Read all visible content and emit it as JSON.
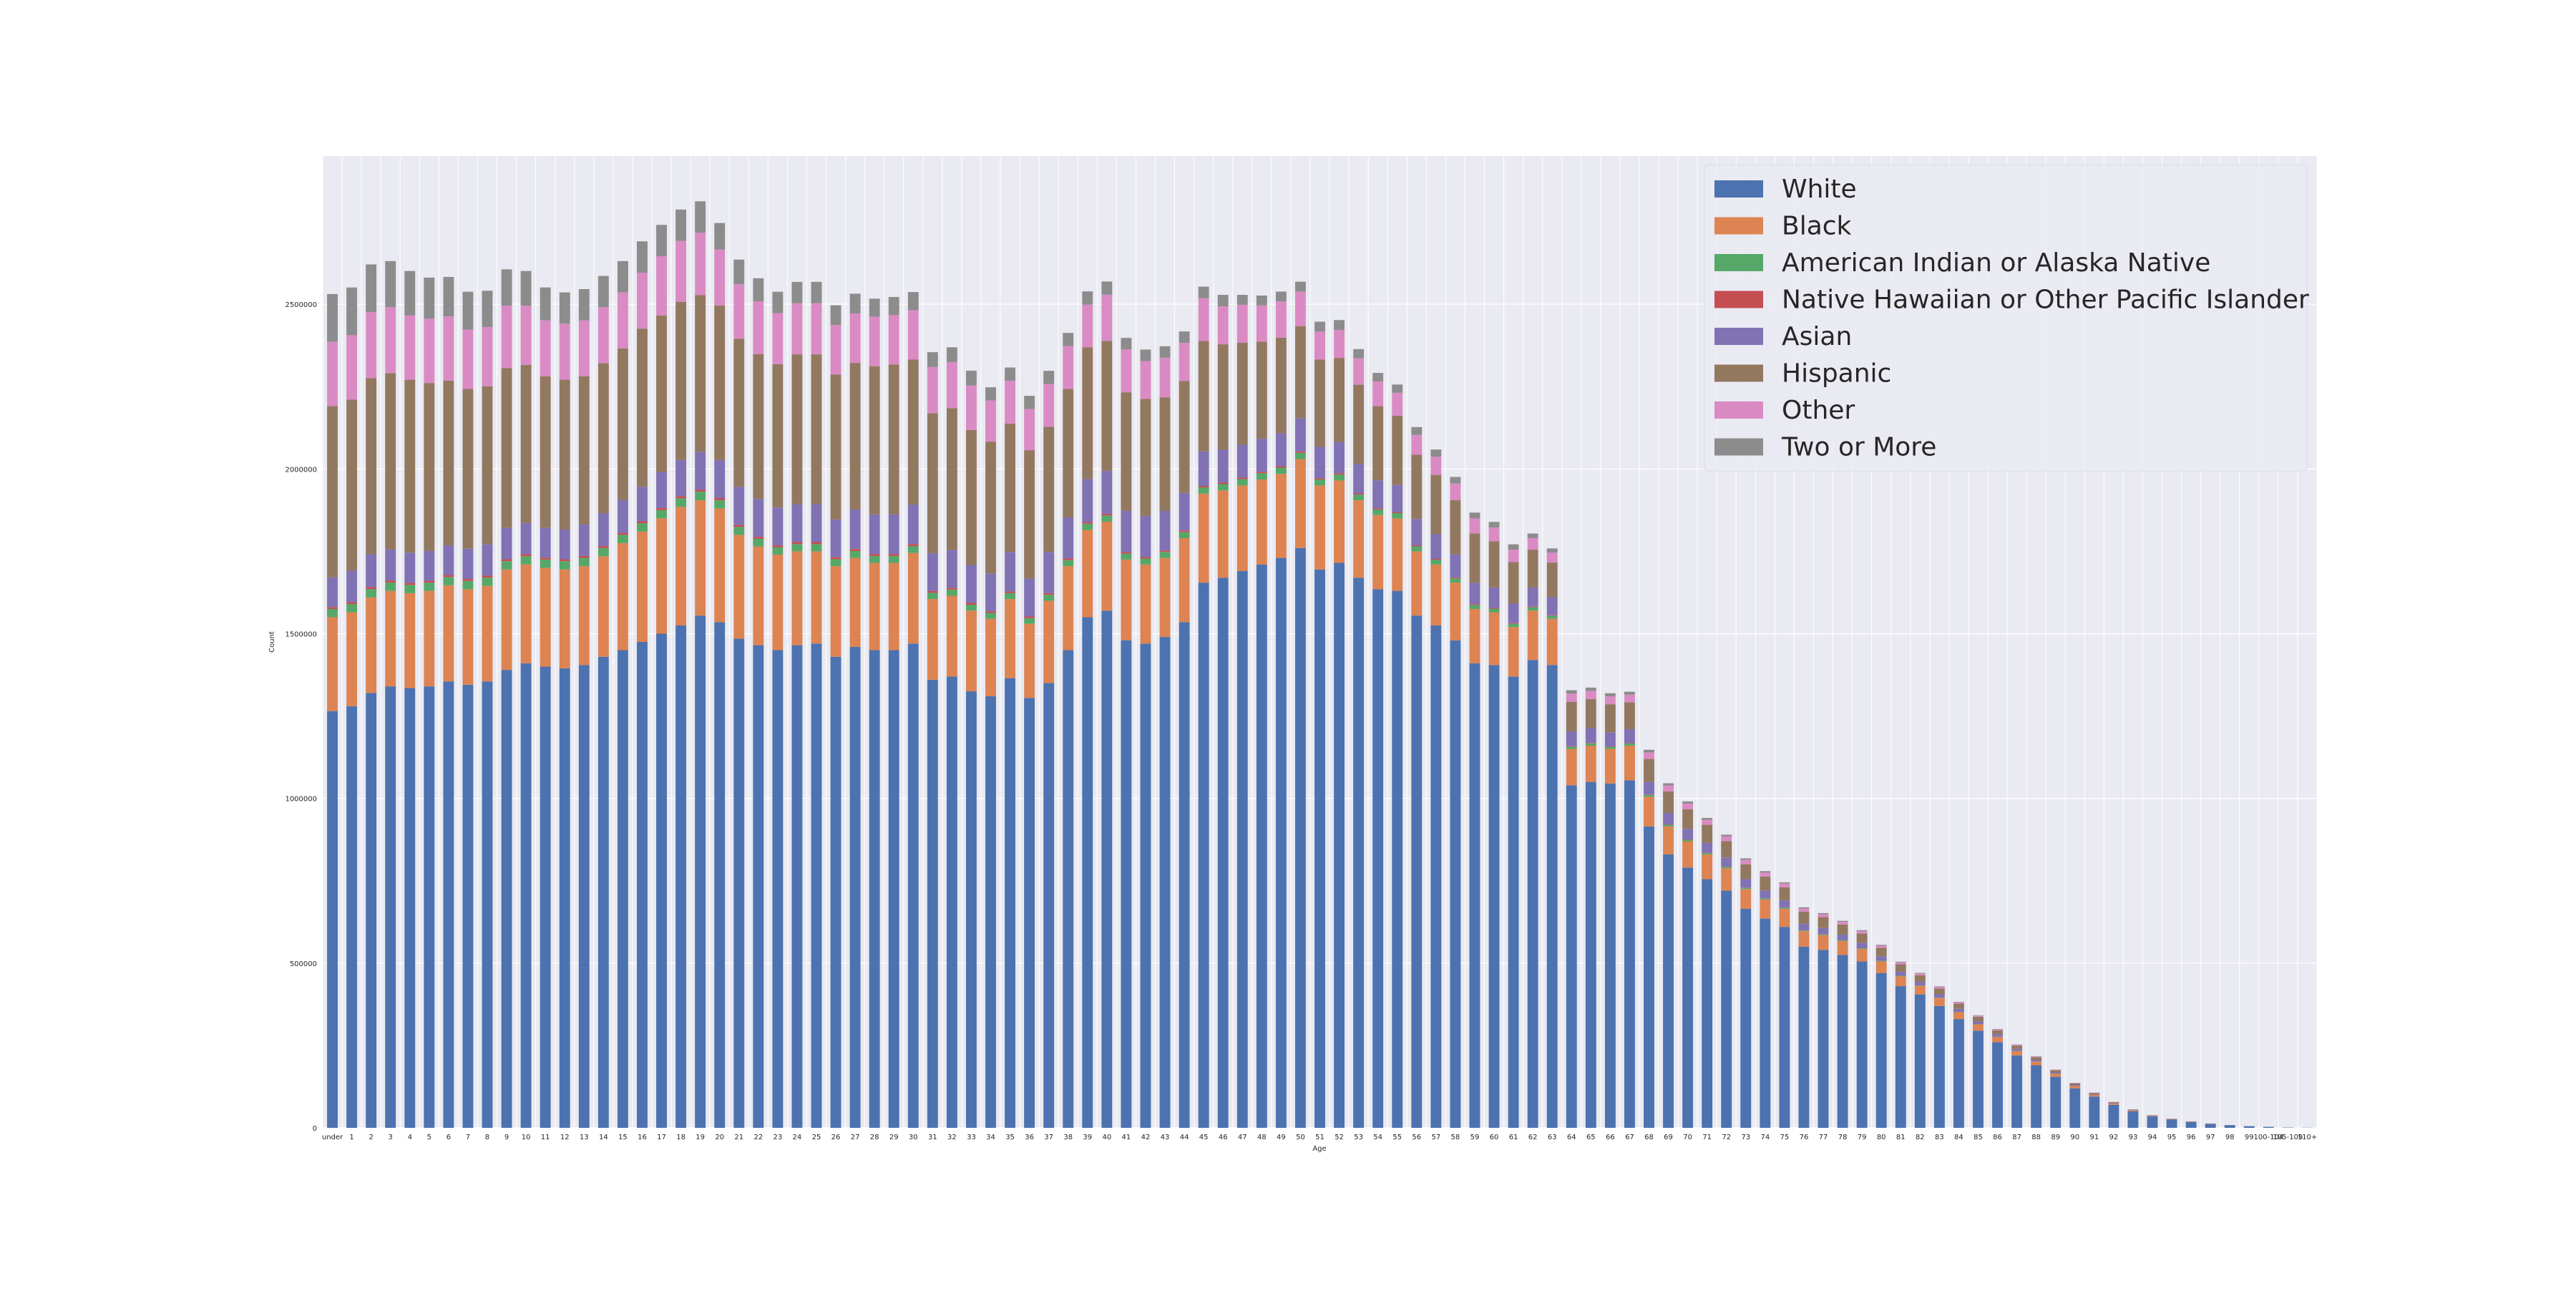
{
  "chart_data": {
    "type": "bar",
    "stacked": true,
    "title": "",
    "xlabel": "Age",
    "ylabel": "Count",
    "ylim": [
      0,
      2950000
    ],
    "yticks": [
      0,
      500000,
      1000000,
      1500000,
      2000000,
      2500000
    ],
    "ytick_labels": [
      "0",
      "500000",
      "1000000",
      "1500000",
      "2000000",
      "2500000"
    ],
    "grid": true,
    "legend_position": "top-right",
    "categories": [
      "under",
      "1",
      "2",
      "3",
      "4",
      "5",
      "6",
      "7",
      "8",
      "9",
      "10",
      "11",
      "12",
      "13",
      "14",
      "15",
      "16",
      "17",
      "18",
      "19",
      "20",
      "21",
      "22",
      "23",
      "24",
      "25",
      "26",
      "27",
      "28",
      "29",
      "30",
      "31",
      "32",
      "33",
      "34",
      "35",
      "36",
      "37",
      "38",
      "39",
      "40",
      "41",
      "42",
      "43",
      "44",
      "45",
      "46",
      "47",
      "48",
      "49",
      "50",
      "51",
      "52",
      "53",
      "54",
      "55",
      "56",
      "57",
      "58",
      "59",
      "60",
      "61",
      "62",
      "63",
      "64",
      "65",
      "66",
      "67",
      "68",
      "69",
      "70",
      "71",
      "72",
      "73",
      "74",
      "75",
      "76",
      "77",
      "78",
      "79",
      "80",
      "81",
      "82",
      "83",
      "84",
      "85",
      "86",
      "87",
      "88",
      "89",
      "90",
      "91",
      "92",
      "93",
      "94",
      "95",
      "96",
      "97",
      "98",
      "99",
      "100-104",
      "105-109",
      "110+"
    ],
    "series": [
      {
        "name": "White",
        "color": "#4c72b0",
        "values": [
          1265000,
          1280000,
          1320000,
          1340000,
          1335000,
          1340000,
          1355000,
          1345000,
          1355000,
          1390000,
          1410000,
          1400000,
          1395000,
          1405000,
          1430000,
          1450000,
          1475000,
          1500000,
          1525000,
          1555000,
          1535000,
          1485000,
          1465000,
          1450000,
          1465000,
          1470000,
          1430000,
          1460000,
          1450000,
          1450000,
          1470000,
          1360000,
          1370000,
          1325000,
          1310000,
          1365000,
          1305000,
          1350000,
          1450000,
          1550000,
          1570000,
          1480000,
          1470000,
          1490000,
          1535000,
          1655000,
          1670000,
          1690000,
          1710000,
          1730000,
          1760000,
          1695000,
          1715000,
          1670000,
          1635000,
          1630000,
          1555000,
          1525000,
          1480000,
          1410000,
          1405000,
          1370000,
          1420000,
          1405000,
          1040000,
          1050000,
          1045000,
          1055000,
          915000,
          830000,
          790000,
          755000,
          720000,
          665000,
          635000,
          610000,
          550000,
          540000,
          525000,
          505000,
          470000,
          430000,
          405000,
          370000,
          330000,
          295000,
          260000,
          220000,
          190000,
          155000,
          120000,
          95000,
          70000,
          50000,
          35000,
          25000,
          18000,
          12000,
          8000,
          5000,
          3000,
          1000,
          500
        ]
      },
      {
        "name": "Black",
        "color": "#dd8452",
        "values": [
          285000,
          285000,
          290000,
          290000,
          288000,
          290000,
          292000,
          290000,
          290000,
          305000,
          300000,
          300000,
          300000,
          300000,
          305000,
          325000,
          335000,
          350000,
          360000,
          350000,
          345000,
          315000,
          300000,
          290000,
          285000,
          280000,
          275000,
          270000,
          265000,
          265000,
          275000,
          245000,
          245000,
          245000,
          235000,
          240000,
          225000,
          250000,
          255000,
          265000,
          270000,
          245000,
          240000,
          240000,
          255000,
          270000,
          265000,
          260000,
          258000,
          255000,
          270000,
          255000,
          250000,
          235000,
          225000,
          220000,
          195000,
          185000,
          175000,
          165000,
          160000,
          150000,
          150000,
          140000,
          110000,
          110000,
          105000,
          105000,
          90000,
          85000,
          80000,
          75000,
          68000,
          60000,
          58000,
          55000,
          47000,
          45000,
          42000,
          38000,
          35000,
          30000,
          26000,
          24000,
          21000,
          19000,
          16000,
          13000,
          11000,
          9000,
          7000,
          5000,
          3500,
          2500,
          1500,
          1000,
          700,
          500,
          300,
          200,
          100,
          50,
          20
        ]
      },
      {
        "name": "American Indian or Alaska Native",
        "color": "#55a868",
        "values": [
          25000,
          25000,
          25000,
          25000,
          25000,
          25000,
          25000,
          25000,
          25000,
          25000,
          25000,
          25000,
          25000,
          25000,
          25000,
          25000,
          25000,
          25000,
          26000,
          26000,
          25000,
          24000,
          23000,
          22000,
          22000,
          22000,
          21000,
          21000,
          21000,
          21000,
          21000,
          19000,
          19000,
          18000,
          18000,
          18000,
          17000,
          18000,
          18000,
          19000,
          19000,
          18000,
          18000,
          18000,
          18000,
          19000,
          19000,
          19000,
          19000,
          19000,
          19000,
          18000,
          18000,
          17000,
          17000,
          16000,
          15000,
          14000,
          13000,
          12000,
          11000,
          10000,
          10000,
          9000,
          7000,
          7000,
          6500,
          6500,
          5500,
          5000,
          4500,
          4000,
          3800,
          3400,
          3100,
          2800,
          2400,
          2200,
          2000,
          1800,
          1600,
          1400,
          1200,
          1000,
          800,
          700,
          600,
          500,
          400,
          300,
          200,
          150,
          100,
          80,
          60,
          40,
          30,
          20,
          10,
          5,
          3,
          1,
          1
        ]
      },
      {
        "name": "Native Hawaiian or Other Pacific Islander",
        "color": "#c44e52",
        "values": [
          6000,
          6000,
          6000,
          6000,
          6000,
          6000,
          6000,
          6000,
          6000,
          6000,
          6000,
          6000,
          6000,
          6000,
          6000,
          6000,
          6000,
          6000,
          6500,
          6500,
          6500,
          6500,
          6000,
          6000,
          6000,
          6000,
          6000,
          6000,
          6000,
          6000,
          6000,
          5500,
          5500,
          5500,
          5000,
          5000,
          5000,
          5000,
          5000,
          5000,
          5000,
          4800,
          4600,
          4600,
          4500,
          4500,
          4500,
          4500,
          4500,
          4500,
          4500,
          4000,
          4000,
          3800,
          3600,
          3400,
          3200,
          3000,
          2800,
          2600,
          2400,
          2200,
          2000,
          1900,
          1400,
          1400,
          1300,
          1300,
          1100,
          1000,
          900,
          800,
          700,
          650,
          600,
          550,
          500,
          450,
          400,
          350,
          300,
          250,
          200,
          180,
          150,
          120,
          100,
          80,
          60,
          50,
          40,
          30,
          20,
          15,
          10,
          8,
          5,
          3,
          2,
          1,
          1,
          0,
          0
        ]
      },
      {
        "name": "Asian",
        "color": "#8172b3",
        "values": [
          90000,
          95000,
          100000,
          95000,
          92000,
          90000,
          90000,
          92000,
          95000,
          95000,
          95000,
          90000,
          90000,
          95000,
          100000,
          100000,
          105000,
          110000,
          110000,
          115000,
          115000,
          115000,
          115000,
          115000,
          115000,
          115000,
          115000,
          120000,
          120000,
          120000,
          120000,
          115000,
          115000,
          115000,
          115000,
          120000,
          115000,
          125000,
          125000,
          130000,
          130000,
          125000,
          125000,
          120000,
          115000,
          105000,
          100000,
          100000,
          100000,
          100000,
          100000,
          95000,
          95000,
          90000,
          85000,
          82000,
          80000,
          75000,
          70000,
          65000,
          62000,
          60000,
          58000,
          55000,
          45000,
          45000,
          43000,
          42000,
          38000,
          35000,
          32000,
          30000,
          28000,
          26000,
          24000,
          22000,
          20000,
          19000,
          17000,
          16000,
          14000,
          12000,
          11000,
          10000,
          9000,
          8000,
          7000,
          6000,
          5000,
          4000,
          3000,
          2000,
          1500,
          1000,
          700,
          500,
          300,
          200,
          100,
          60,
          30,
          10,
          5
        ]
      },
      {
        "name": "Hispanic",
        "color": "#937860",
        "values": [
          520000,
          520000,
          535000,
          535000,
          525000,
          510000,
          500000,
          485000,
          480000,
          485000,
          480000,
          460000,
          455000,
          450000,
          455000,
          460000,
          480000,
          475000,
          480000,
          475000,
          470000,
          450000,
          440000,
          435000,
          455000,
          455000,
          440000,
          445000,
          450000,
          455000,
          440000,
          425000,
          430000,
          410000,
          400000,
          390000,
          390000,
          380000,
          390000,
          400000,
          395000,
          360000,
          355000,
          345000,
          340000,
          335000,
          320000,
          310000,
          295000,
          290000,
          280000,
          265000,
          255000,
          240000,
          225000,
          210000,
          195000,
          180000,
          165000,
          150000,
          140000,
          125000,
          115000,
          105000,
          90000,
          88000,
          85000,
          82000,
          70000,
          65000,
          60000,
          55000,
          50000,
          45000,
          42000,
          40000,
          36000,
          33000,
          31000,
          29000,
          26000,
          23000,
          20000,
          18000,
          16000,
          14000,
          12000,
          10000,
          8000,
          6500,
          5000,
          3800,
          2800,
          2000,
          1400,
          1000,
          600,
          400,
          250,
          150,
          80,
          30,
          10
        ]
      },
      {
        "name": "Other",
        "color": "#da8bc3",
        "values": [
          195000,
          195000,
          200000,
          200000,
          195000,
          195000,
          195000,
          180000,
          180000,
          190000,
          180000,
          170000,
          170000,
          170000,
          170000,
          170000,
          170000,
          180000,
          185000,
          190000,
          170000,
          165000,
          160000,
          155000,
          155000,
          155000,
          150000,
          150000,
          150000,
          150000,
          150000,
          140000,
          140000,
          135000,
          125000,
          130000,
          125000,
          130000,
          130000,
          130000,
          140000,
          130000,
          115000,
          120000,
          115000,
          130000,
          115000,
          115000,
          110000,
          110000,
          105000,
          85000,
          85000,
          80000,
          75000,
          70000,
          60000,
          55000,
          50000,
          45000,
          42000,
          38000,
          35000,
          30000,
          25000,
          25000,
          24000,
          23000,
          20000,
          18000,
          17000,
          15000,
          14000,
          13000,
          12000,
          11000,
          10000,
          9000,
          8000,
          7000,
          6000,
          5500,
          5000,
          4500,
          4000,
          3500,
          3000,
          2500,
          2000,
          1500,
          1200,
          900,
          600,
          400,
          300,
          200,
          120,
          80,
          50,
          30,
          15,
          5,
          2
        ]
      },
      {
        "name": "Two or More",
        "color": "#8c8c8c",
        "values": [
          145000,
          145000,
          145000,
          140000,
          135000,
          125000,
          120000,
          115000,
          110000,
          110000,
          105000,
          100000,
          95000,
          95000,
          95000,
          95000,
          95000,
          95000,
          95000,
          95000,
          80000,
          75000,
          70000,
          65000,
          65000,
          65000,
          60000,
          60000,
          55000,
          55000,
          55000,
          45000,
          45000,
          45000,
          40000,
          40000,
          40000,
          40000,
          40000,
          40000,
          40000,
          35000,
          35000,
          35000,
          35000,
          35000,
          35000,
          30000,
          30000,
          30000,
          30000,
          30000,
          30000,
          28000,
          26000,
          25000,
          24000,
          22000,
          20000,
          18000,
          17000,
          16000,
          14000,
          13000,
          10000,
          10000,
          9500,
          9000,
          8000,
          7000,
          6500,
          6000,
          5500,
          5000,
          4500,
          4000,
          3500,
          3200,
          3000,
          2800,
          2500,
          2200,
          2000,
          1800,
          1600,
          1400,
          1200,
          1000,
          800,
          600,
          400,
          300,
          200,
          150,
          100,
          70,
          50,
          30,
          20,
          10,
          5,
          2,
          1
        ]
      }
    ]
  }
}
